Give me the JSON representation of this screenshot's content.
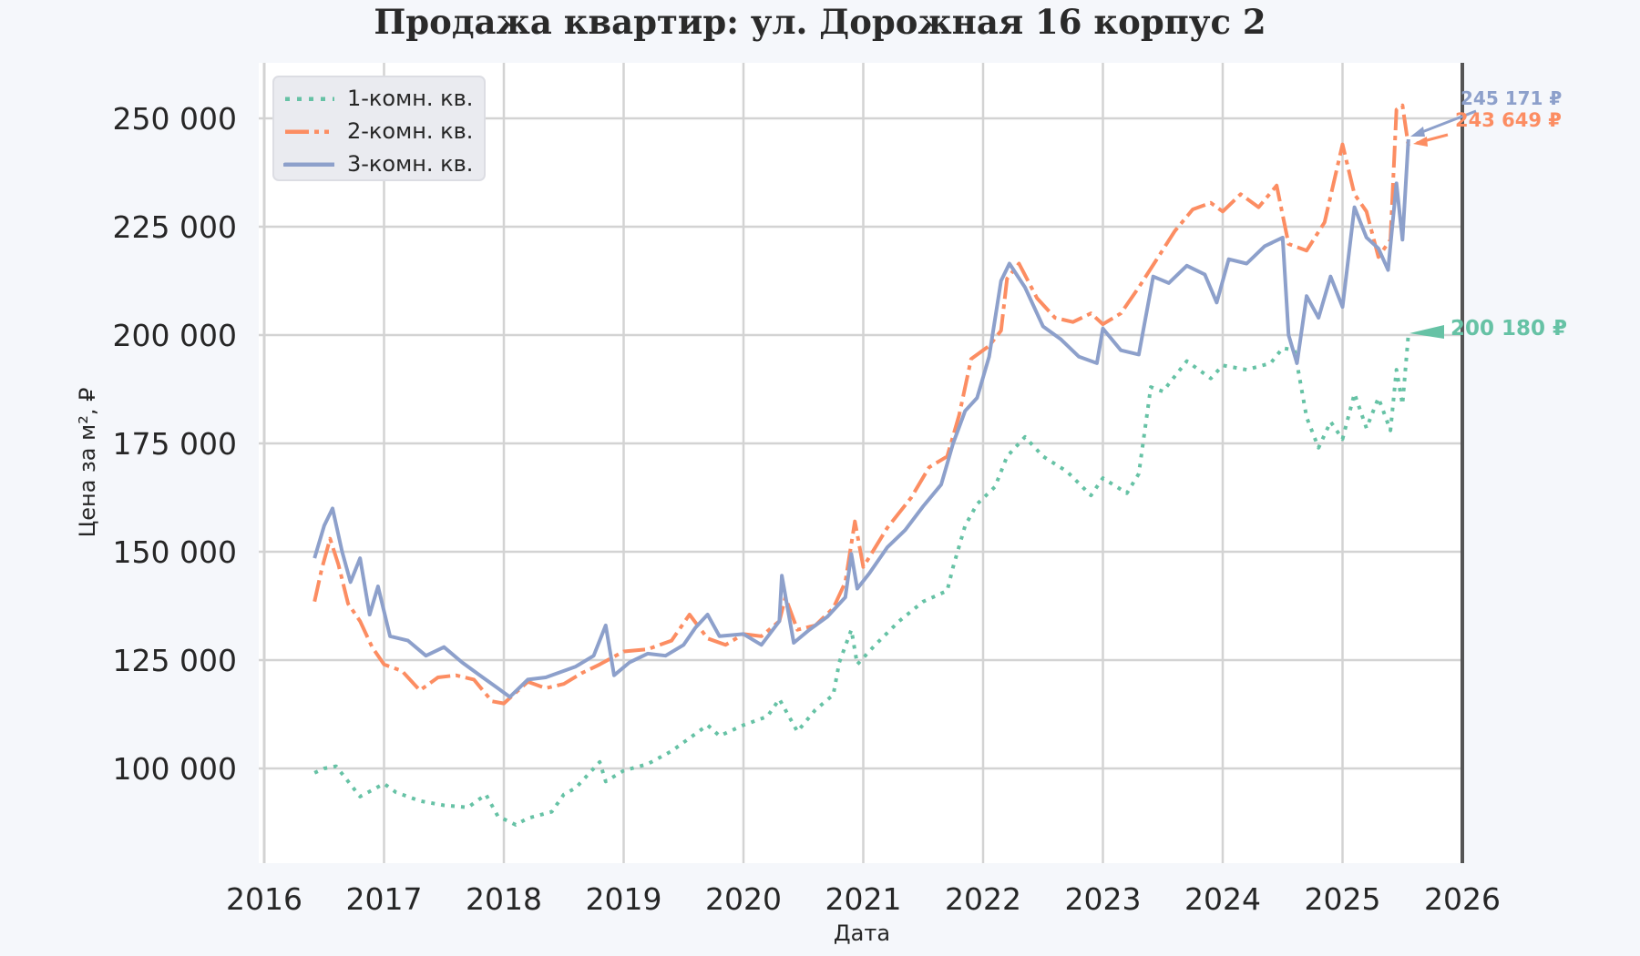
{
  "title": "Продажа квартир: ул. Дорожная 16 корпус 2",
  "axes": {
    "xlabel": "Дата",
    "ylabel": "Цена за м², ₽",
    "xticks": [
      "2016",
      "2017",
      "2018",
      "2019",
      "2020",
      "2021",
      "2022",
      "2023",
      "2024",
      "2025",
      "2026"
    ],
    "yticks": [
      "100 000",
      "125 000",
      "150 000",
      "175 000",
      "200 000",
      "225 000",
      "250 000"
    ]
  },
  "legend": {
    "items": [
      {
        "label": "1-комн. кв.",
        "color": "#66c2a5",
        "style": "dotted"
      },
      {
        "label": "2-комн. кв.",
        "color": "#fc8d62",
        "style": "dashdot"
      },
      {
        "label": "3-комн. кв.",
        "color": "#8da0cb",
        "style": "solid"
      }
    ]
  },
  "annotations": [
    {
      "text": "245 171 ₽",
      "color": "#8da0cb"
    },
    {
      "text": "243 649 ₽",
      "color": "#fc8d62"
    },
    {
      "text": "200 180 ₽",
      "color": "#66c2a5"
    }
  ],
  "colors": {
    "one_room": "#66c2a5",
    "two_room": "#fc8d62",
    "three_room": "#8da0cb",
    "background": "#f5f7fb",
    "plot_bg": "#ffffff",
    "grid": "#d3d3d3"
  },
  "chart_data": {
    "type": "line",
    "title": "Продажа квартир: ул. Дорожная 16 корпус 2",
    "xlabel": "Дата",
    "ylabel": "Цена за м², ₽",
    "xlim": [
      2016,
      2026
    ],
    "ylim": [
      83000,
      262000
    ],
    "grid": true,
    "legend_position": "upper left",
    "vline_x": 2026,
    "series": [
      {
        "name": "1-комн. кв.",
        "style": "dotted",
        "color": "#66c2a5",
        "x": [
          2016.42,
          2016.5,
          2016.6,
          2016.7,
          2016.8,
          2016.9,
          2017.0,
          2017.1,
          2017.3,
          2017.5,
          2017.7,
          2017.85,
          2017.95,
          2018.1,
          2018.2,
          2018.4,
          2018.5,
          2018.6,
          2018.8,
          2018.85,
          2019.0,
          2019.2,
          2019.4,
          2019.6,
          2019.7,
          2019.8,
          2020.0,
          2020.2,
          2020.3,
          2020.45,
          2020.6,
          2020.75,
          2020.8,
          2020.9,
          2020.95,
          2021.1,
          2021.3,
          2021.5,
          2021.7,
          2021.75,
          2021.85,
          2021.95,
          2022.1,
          2022.2,
          2022.35,
          2022.5,
          2022.7,
          2022.9,
          2023.0,
          2023.2,
          2023.3,
          2023.4,
          2023.5,
          2023.7,
          2023.9,
          2024.0,
          2024.2,
          2024.4,
          2024.5,
          2024.6,
          2024.7,
          2024.8,
          2024.9,
          2025.0,
          2025.1,
          2025.2,
          2025.3,
          2025.4,
          2025.45,
          2025.5,
          2025.55
        ],
        "values": [
          99000,
          100000,
          100500,
          97000,
          93500,
          95000,
          96500,
          94500,
          92500,
          91500,
          91000,
          94000,
          89000,
          87000,
          88500,
          90000,
          94000,
          95500,
          101500,
          97000,
          99500,
          101000,
          104000,
          108000,
          110000,
          107500,
          110000,
          112000,
          116000,
          108500,
          113500,
          117000,
          124500,
          132000,
          124000,
          128500,
          134000,
          138500,
          141000,
          146500,
          156000,
          161000,
          165000,
          172000,
          176500,
          172000,
          168500,
          163000,
          167000,
          163500,
          168000,
          188000,
          187000,
          194000,
          190000,
          193000,
          192000,
          193500,
          197000,
          196500,
          181000,
          174000,
          180000,
          176000,
          186500,
          178500,
          185500,
          178000,
          192000,
          184000,
          200180
        ]
      },
      {
        "name": "2-комн. кв.",
        "style": "dashdot",
        "color": "#fc8d62",
        "x": [
          2016.42,
          2016.48,
          2016.55,
          2016.62,
          2016.7,
          2016.8,
          2016.9,
          2017.0,
          2017.15,
          2017.3,
          2017.45,
          2017.6,
          2017.75,
          2017.9,
          2018.0,
          2018.1,
          2018.2,
          2018.35,
          2018.5,
          2018.65,
          2018.8,
          2019.0,
          2019.2,
          2019.4,
          2019.55,
          2019.7,
          2019.85,
          2020.0,
          2020.15,
          2020.3,
          2020.35,
          2020.45,
          2020.6,
          2020.75,
          2020.85,
          2020.93,
          2021.0,
          2021.2,
          2021.4,
          2021.55,
          2021.7,
          2021.8,
          2021.9,
          2022.05,
          2022.15,
          2022.2,
          2022.3,
          2022.45,
          2022.6,
          2022.75,
          2022.9,
          2023.0,
          2023.15,
          2023.3,
          2023.45,
          2023.6,
          2023.75,
          2023.9,
          2024.0,
          2024.15,
          2024.3,
          2024.45,
          2024.55,
          2024.7,
          2024.85,
          2025.0,
          2025.1,
          2025.2,
          2025.3,
          2025.4,
          2025.45,
          2025.5,
          2025.55
        ],
        "values": [
          138500,
          146000,
          153000,
          147000,
          138000,
          134000,
          128000,
          124000,
          122500,
          118000,
          121000,
          121500,
          120500,
          115500,
          115000,
          117500,
          120000,
          118500,
          119500,
          122000,
          124000,
          127000,
          127500,
          129500,
          135500,
          130000,
          128500,
          131000,
          130500,
          134000,
          139500,
          132000,
          133000,
          137000,
          143000,
          157000,
          146500,
          155500,
          162500,
          169500,
          172000,
          181500,
          194500,
          197500,
          201000,
          213000,
          216500,
          208500,
          204000,
          203000,
          205000,
          202500,
          205000,
          211000,
          217500,
          224000,
          229000,
          230500,
          228500,
          232500,
          229500,
          234500,
          221000,
          219500,
          226000,
          244000,
          232500,
          228500,
          218000,
          222000,
          252000,
          253000,
          243649
        ]
      },
      {
        "name": "3-комн. кв.",
        "style": "solid",
        "color": "#8da0cb",
        "x": [
          2016.42,
          2016.5,
          2016.57,
          2016.65,
          2016.72,
          2016.8,
          2016.88,
          2016.95,
          2017.05,
          2017.2,
          2017.35,
          2017.5,
          2017.65,
          2017.8,
          2017.95,
          2018.05,
          2018.2,
          2018.35,
          2018.5,
          2018.6,
          2018.75,
          2018.85,
          2018.92,
          2019.05,
          2019.2,
          2019.35,
          2019.5,
          2019.6,
          2019.7,
          2019.8,
          2020.0,
          2020.15,
          2020.3,
          2020.32,
          2020.42,
          2020.55,
          2020.7,
          2020.85,
          2020.9,
          2020.95,
          2021.05,
          2021.2,
          2021.35,
          2021.5,
          2021.65,
          2021.75,
          2021.85,
          2021.95,
          2022.05,
          2022.15,
          2022.22,
          2022.35,
          2022.5,
          2022.65,
          2022.8,
          2022.95,
          2023.0,
          2023.15,
          2023.3,
          2023.42,
          2023.55,
          2023.7,
          2023.85,
          2023.95,
          2024.05,
          2024.2,
          2024.35,
          2024.5,
          2024.55,
          2024.62,
          2024.7,
          2024.8,
          2024.9,
          2025.0,
          2025.1,
          2025.2,
          2025.3,
          2025.38,
          2025.45,
          2025.5,
          2025.55
        ],
        "values": [
          148500,
          156000,
          160000,
          150000,
          143000,
          148500,
          135500,
          142000,
          130500,
          129500,
          126000,
          128000,
          124500,
          121500,
          118500,
          116500,
          120500,
          121000,
          122500,
          123500,
          126000,
          133000,
          121500,
          124500,
          126500,
          126000,
          128500,
          132500,
          135500,
          130500,
          131000,
          128500,
          134000,
          144500,
          129000,
          132000,
          135000,
          139500,
          149500,
          141500,
          145000,
          151000,
          155000,
          160500,
          165500,
          175000,
          182500,
          185500,
          195000,
          212500,
          216500,
          211000,
          202000,
          199000,
          195000,
          193500,
          201500,
          196500,
          195500,
          213500,
          212000,
          216000,
          214000,
          207500,
          217500,
          216500,
          220500,
          222500,
          200000,
          193500,
          209000,
          204000,
          213500,
          206500,
          229500,
          222500,
          220000,
          215000,
          235000,
          222000,
          245171
        ]
      }
    ]
  }
}
